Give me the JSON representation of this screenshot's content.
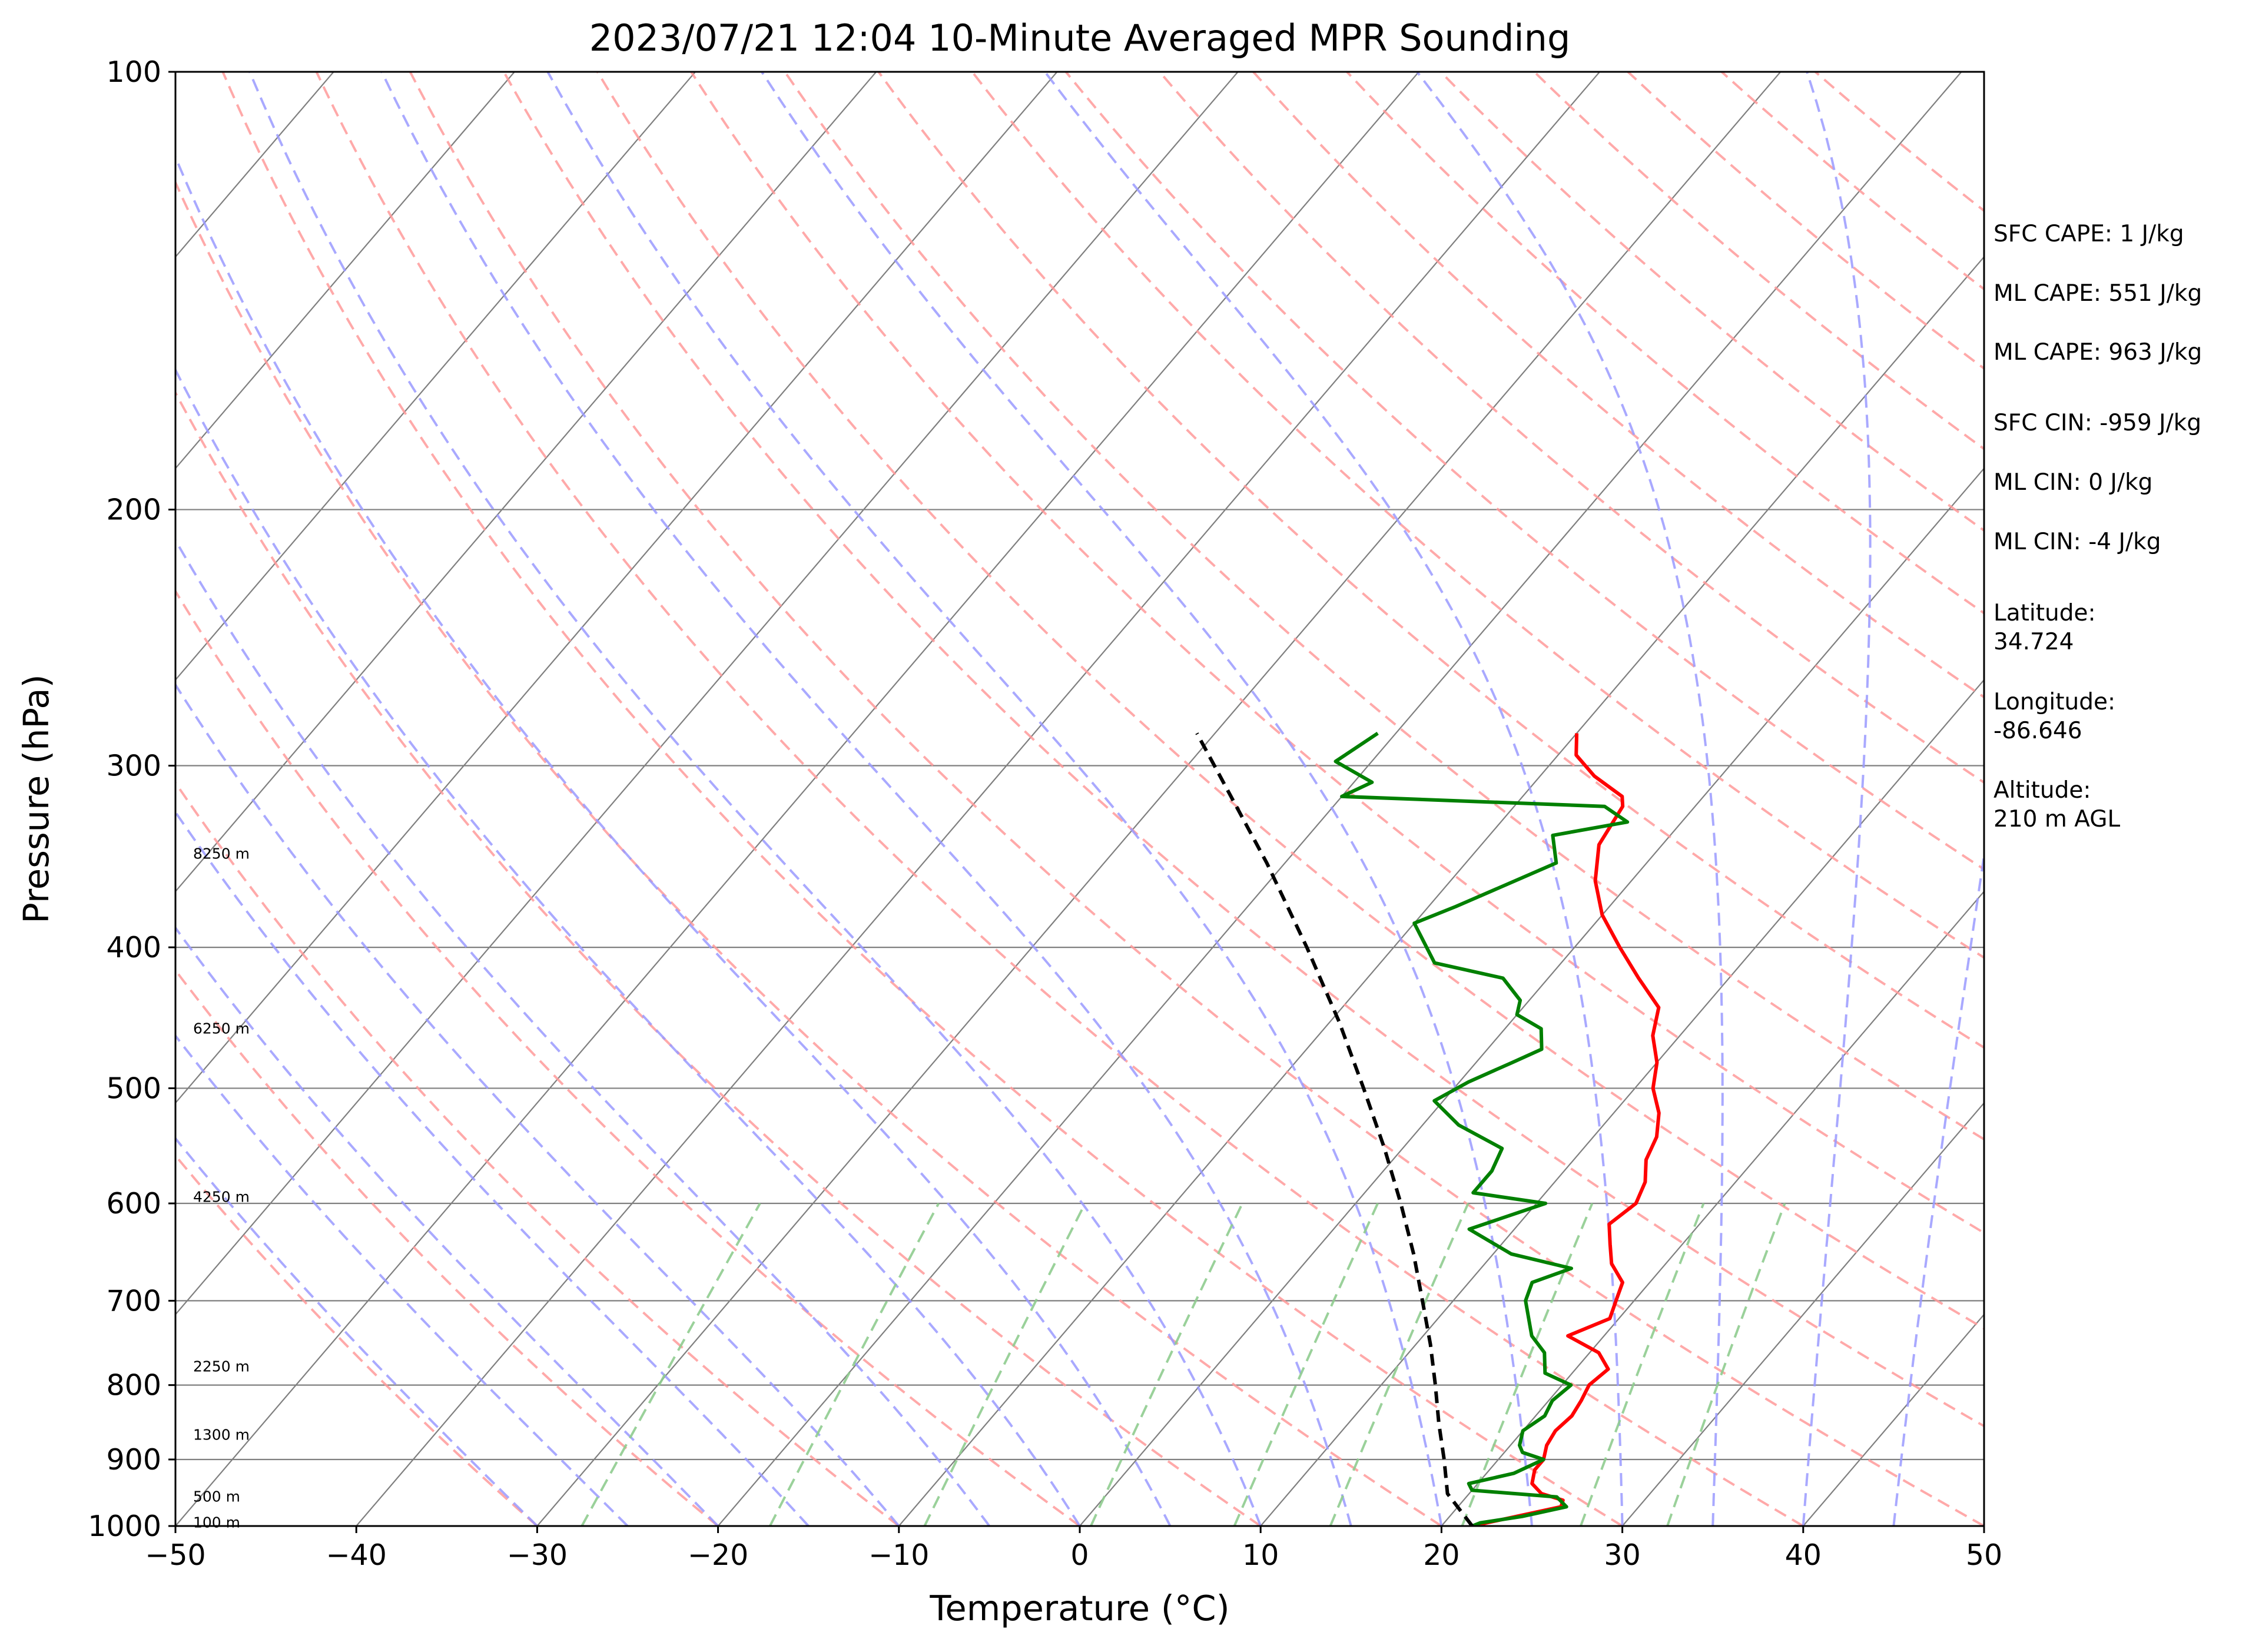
{
  "chart_data": {
    "type": "skew-t",
    "title": "2023/07/21 12:04 10-Minute Averaged MPR Sounding",
    "xlabel": "Temperature (°C)",
    "ylabel": "Pressure (hPa)",
    "xlim": [
      -50,
      50
    ],
    "ylim": [
      1000,
      100
    ],
    "y_scale": "log",
    "x_ticks": [
      "−50",
      "−40",
      "−30",
      "−20",
      "−10",
      "0",
      "10",
      "20",
      "30",
      "40",
      "50"
    ],
    "y_ticks": [
      "100",
      "200",
      "300",
      "400",
      "500",
      "600",
      "700",
      "800",
      "900",
      "1000"
    ],
    "height_labels": [
      "8250 m",
      "6250 m",
      "4250 m",
      "2250 m",
      "1300 m",
      "500 m",
      "100 m"
    ],
    "height_label_pressures": [
      345,
      455,
      594,
      777,
      866,
      955,
      995
    ],
    "grid": true,
    "colors": {
      "temperature": "#ff0000",
      "dewpoint": "#008000",
      "parcel": "#000000",
      "dry_adiabats": "#ff9a9a",
      "moist_adiabats": "#9a9aff",
      "mixing_ratio": "#8fcc8f",
      "isotherms": "#7f7f7f"
    },
    "series": [
      {
        "name": "Temperature",
        "points": [
          [
            1000,
            21.7
          ],
          [
            970,
            25.7
          ],
          [
            960,
            25.5
          ],
          [
            950,
            24.0
          ],
          [
            935,
            23.0
          ],
          [
            915,
            22.5
          ],
          [
            900,
            22.5
          ],
          [
            880,
            22.0
          ],
          [
            860,
            21.8
          ],
          [
            840,
            22.0
          ],
          [
            820,
            21.8
          ],
          [
            800,
            21.5
          ],
          [
            780,
            21.8
          ],
          [
            760,
            20.5
          ],
          [
            740,
            18.0
          ],
          [
            720,
            19.5
          ],
          [
            700,
            19.0
          ],
          [
            680,
            18.5
          ],
          [
            660,
            17.0
          ],
          [
            640,
            16.0
          ],
          [
            620,
            15.0
          ],
          [
            600,
            15.5
          ],
          [
            580,
            15.0
          ],
          [
            560,
            14.0
          ],
          [
            540,
            13.5
          ],
          [
            520,
            12.5
          ],
          [
            500,
            11.0
          ],
          [
            480,
            10.0
          ],
          [
            460,
            8.5
          ],
          [
            440,
            7.5
          ],
          [
            420,
            5.0
          ],
          [
            400,
            2.5
          ],
          [
            380,
            0.0
          ],
          [
            360,
            -2.0
          ],
          [
            340,
            -3.5
          ],
          [
            320,
            -4.0
          ],
          [
            315,
            -4.5
          ],
          [
            305,
            -7.0
          ],
          [
            295,
            -9.0
          ],
          [
            285,
            -10.0
          ]
        ]
      },
      {
        "name": "Dewpoint",
        "points": [
          [
            1000,
            21.7
          ],
          [
            995,
            22.0
          ],
          [
            985,
            24.0
          ],
          [
            970,
            26.0
          ],
          [
            955,
            25.0
          ],
          [
            945,
            20.0
          ],
          [
            935,
            19.5
          ],
          [
            920,
            21.5
          ],
          [
            900,
            22.5
          ],
          [
            890,
            21.0
          ],
          [
            880,
            20.5
          ],
          [
            860,
            20.0
          ],
          [
            840,
            20.5
          ],
          [
            820,
            20.2
          ],
          [
            800,
            20.5
          ],
          [
            785,
            18.5
          ],
          [
            760,
            17.5
          ],
          [
            740,
            16.0
          ],
          [
            700,
            14.0
          ],
          [
            680,
            13.5
          ],
          [
            665,
            15.0
          ],
          [
            650,
            11.0
          ],
          [
            625,
            7.5
          ],
          [
            600,
            10.5
          ],
          [
            590,
            6.0
          ],
          [
            570,
            6.0
          ],
          [
            550,
            5.5
          ],
          [
            530,
            2.0
          ],
          [
            510,
            -0.5
          ],
          [
            495,
            0.5
          ],
          [
            480,
            2.0
          ],
          [
            470,
            3.0
          ],
          [
            455,
            2.0
          ],
          [
            445,
            0.0
          ],
          [
            435,
            -0.5
          ],
          [
            420,
            -2.5
          ],
          [
            410,
            -7.0
          ],
          [
            385,
            -10.0
          ],
          [
            375,
            -8.5
          ],
          [
            350,
            -5.0
          ],
          [
            335,
            -6.5
          ],
          [
            328,
            -3.0
          ],
          [
            320,
            -5.0
          ],
          [
            315,
            -20.0
          ],
          [
            308,
            -19.0
          ],
          [
            298,
            -22.0
          ],
          [
            285,
            -21.0
          ]
        ]
      },
      {
        "name": "Parcel",
        "points": [
          [
            1000,
            21.7
          ],
          [
            950,
            18.8
          ],
          [
            900,
            17.0
          ],
          [
            850,
            15.0
          ],
          [
            800,
            13.0
          ],
          [
            750,
            10.8
          ],
          [
            700,
            8.3
          ],
          [
            650,
            5.6
          ],
          [
            600,
            2.5
          ],
          [
            550,
            -1.0
          ],
          [
            500,
            -5.0
          ],
          [
            450,
            -9.5
          ],
          [
            400,
            -14.8
          ],
          [
            350,
            -21.0
          ],
          [
            300,
            -28.5
          ],
          [
            285,
            -31.0
          ]
        ]
      }
    ]
  },
  "info_panel": {
    "sfc_cape": "SFC CAPE: 1 J/kg",
    "ml_cape": "ML CAPE: 551 J/kg",
    "ml_cape_2": "ML CAPE: 963 J/kg",
    "sfc_cin": "SFC CIN: -959 J/kg",
    "ml_cin": "ML CIN: 0 J/kg",
    "ml_cin_2": "ML CIN: -4 J/kg",
    "latitude_label": "Latitude:",
    "latitude_value": "34.724",
    "longitude_label": "Longitude:",
    "longitude_value": "-86.646",
    "altitude_label": "Altitude:",
    "altitude_value": "210 m AGL"
  }
}
